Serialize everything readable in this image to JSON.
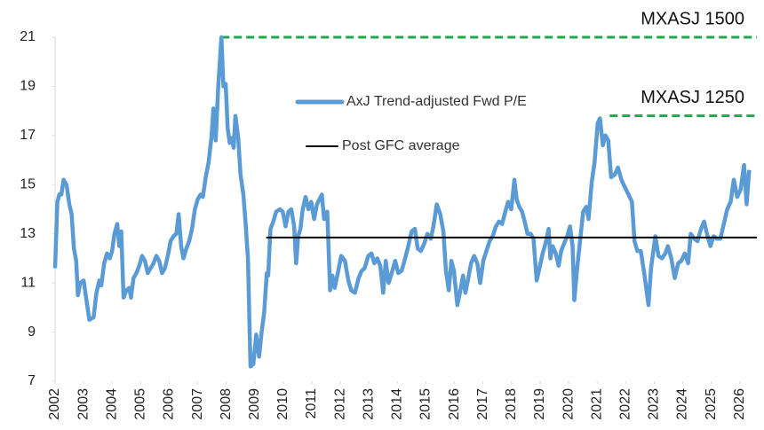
{
  "chart_data": {
    "type": "line",
    "xlim": [
      2002,
      2026.6
    ],
    "ylim": [
      7,
      21
    ],
    "yticks": [
      7,
      9,
      11,
      13,
      15,
      17,
      19,
      21
    ],
    "xticks": [
      2002,
      2003,
      2004,
      2005,
      2006,
      2007,
      2008,
      2009,
      2010,
      2011,
      2012,
      2013,
      2014,
      2015,
      2016,
      2017,
      2018,
      2019,
      2020,
      2021,
      2022,
      2023,
      2024,
      2025,
      2026
    ],
    "grid": false,
    "series": [
      {
        "name": "AxJ Trend-adjusted Fwd P/E",
        "color": "#5b9bd5",
        "x": [
          2002.0,
          2002.08,
          2002.15,
          2002.22,
          2002.3,
          2002.4,
          2002.5,
          2002.58,
          2002.66,
          2002.74,
          2002.8,
          2002.88,
          2003.0,
          2003.1,
          2003.2,
          2003.35,
          2003.45,
          2003.55,
          2003.62,
          2003.72,
          2003.82,
          2003.92,
          2004.0,
          2004.08,
          2004.18,
          2004.25,
          2004.32,
          2004.4,
          2004.5,
          2004.6,
          2004.66,
          2004.75,
          2004.85,
          2004.95,
          2005.05,
          2005.15,
          2005.25,
          2005.35,
          2005.45,
          2005.55,
          2005.65,
          2005.75,
          2005.85,
          2005.95,
          2006.05,
          2006.15,
          2006.25,
          2006.33,
          2006.42,
          2006.5,
          2006.6,
          2006.7,
          2006.8,
          2006.9,
          2007.0,
          2007.1,
          2007.18,
          2007.28,
          2007.38,
          2007.48,
          2007.55,
          2007.63,
          2007.72,
          2007.83,
          2007.9,
          2007.98,
          2008.05,
          2008.12,
          2008.2,
          2008.26,
          2008.32,
          2008.42,
          2008.5,
          2008.6,
          2008.68,
          2008.76,
          2008.85,
          2008.95,
          2009.05,
          2009.15,
          2009.25,
          2009.33,
          2009.42,
          2009.47,
          2009.55,
          2009.65,
          2009.75,
          2009.88,
          2009.98,
          2010.08,
          2010.18,
          2010.28,
          2010.38,
          2010.45,
          2010.52,
          2010.6,
          2010.68,
          2010.78,
          2010.88,
          2010.98,
          2011.08,
          2011.18,
          2011.35,
          2011.43,
          2011.54,
          2011.64,
          2011.72,
          2011.8,
          2011.91,
          2012.03,
          2012.16,
          2012.28,
          2012.38,
          2012.51,
          2012.64,
          2012.75,
          2012.85,
          2012.98,
          2013.09,
          2013.19,
          2013.29,
          2013.4,
          2013.5,
          2013.59,
          2013.69,
          2013.8,
          2013.92,
          2014.03,
          2014.15,
          2014.27,
          2014.38,
          2014.5,
          2014.61,
          2014.71,
          2014.82,
          2014.94,
          2015.05,
          2015.17,
          2015.26,
          2015.38,
          2015.5,
          2015.61,
          2015.7,
          2015.8,
          2015.89,
          2015.98,
          2016.1,
          2016.19,
          2016.3,
          2016.38,
          2016.47,
          2016.58,
          2016.69,
          2016.8,
          2016.9,
          2017.01,
          2017.12,
          2017.23,
          2017.34,
          2017.45,
          2017.56,
          2017.67,
          2017.78,
          2017.88,
          2017.99,
          2018.1,
          2018.18,
          2018.27,
          2018.37,
          2018.46,
          2018.56,
          2018.67,
          2018.77,
          2018.88,
          2018.98,
          2019.09,
          2019.19,
          2019.3,
          2019.36,
          2019.44,
          2019.55,
          2019.65,
          2019.74,
          2019.84,
          2019.95,
          2020.05,
          2020.14,
          2020.2,
          2020.3,
          2020.41,
          2020.51,
          2020.62,
          2020.7,
          2020.81,
          2020.91,
          2021.02,
          2021.1,
          2021.2,
          2021.29,
          2021.39,
          2021.49,
          2021.61,
          2021.73,
          2021.85,
          2021.97,
          2022.1,
          2022.22,
          2022.31,
          2022.41,
          2022.53,
          2022.65,
          2022.8,
          2022.89,
          2023.04,
          2023.15,
          2023.27,
          2023.39,
          2023.48,
          2023.6,
          2023.72,
          2023.84,
          2023.95,
          2024.07,
          2024.19,
          2024.28,
          2024.4,
          2024.52,
          2024.64,
          2024.75,
          2024.85,
          2024.97,
          2025.08,
          2025.2,
          2025.32,
          2025.44,
          2025.56,
          2025.68,
          2025.79,
          2025.91,
          2026.03,
          2026.15,
          2026.24,
          2026.33
        ],
        "values": [
          11.6,
          14.3,
          14.6,
          14.6,
          15.2,
          15.0,
          14.2,
          13.8,
          12.4,
          11.9,
          10.5,
          11.0,
          11.1,
          10.3,
          9.5,
          9.6,
          10.6,
          11.1,
          10.9,
          11.8,
          12.2,
          12.0,
          12.3,
          13.0,
          13.4,
          12.5,
          13.1,
          10.4,
          10.7,
          10.8,
          10.4,
          11.2,
          11.4,
          11.7,
          12.1,
          11.9,
          11.4,
          11.6,
          11.8,
          12.1,
          11.9,
          11.4,
          11.6,
          12.1,
          12.7,
          12.9,
          13.0,
          13.8,
          12.5,
          12.0,
          12.4,
          12.7,
          13.2,
          14.0,
          14.4,
          14.6,
          14.5,
          15.3,
          15.9,
          16.9,
          18.1,
          16.8,
          19.0,
          21.0,
          19.0,
          19.1,
          17.3,
          16.7,
          16.9,
          16.5,
          17.8,
          16.9,
          15.4,
          14.6,
          13.4,
          12.0,
          7.6,
          7.7,
          8.9,
          8.0,
          9.1,
          9.8,
          11.4,
          11.3,
          13.2,
          13.5,
          13.9,
          14.0,
          13.9,
          13.3,
          13.9,
          14.0,
          13.3,
          11.8,
          12.9,
          13.2,
          14.0,
          14.5,
          14.0,
          14.3,
          13.6,
          14.2,
          14.6,
          13.6,
          13.9,
          10.7,
          11.3,
          10.8,
          11.4,
          12.1,
          11.9,
          11.1,
          10.7,
          10.6,
          11.2,
          11.5,
          11.6,
          12.1,
          12.2,
          11.8,
          12.0,
          11.7,
          10.6,
          11.9,
          11.0,
          11.4,
          11.9,
          11.4,
          11.5,
          12.0,
          12.5,
          13.1,
          13.2,
          12.4,
          12.3,
          12.6,
          13.0,
          12.8,
          13.3,
          14.2,
          13.8,
          13.1,
          11.5,
          10.7,
          11.9,
          11.5,
          10.1,
          10.6,
          11.3,
          10.6,
          11.1,
          11.8,
          12.1,
          11.8,
          11.0,
          11.9,
          12.3,
          12.7,
          12.9,
          13.3,
          13.5,
          13.4,
          13.9,
          14.3,
          14.0,
          15.2,
          14.4,
          14.1,
          13.9,
          13.5,
          13.0,
          13.0,
          12.8,
          11.1,
          11.6,
          12.2,
          12.6,
          13.2,
          12.0,
          12.5,
          12.2,
          11.7,
          12.3,
          12.6,
          12.9,
          13.3,
          12.5,
          10.3,
          11.6,
          12.8,
          13.9,
          14.1,
          13.6,
          15.1,
          15.9,
          17.5,
          17.7,
          16.6,
          17.0,
          16.8,
          15.3,
          15.4,
          15.7,
          15.2,
          14.9,
          14.6,
          14.3,
          12.7,
          12.3,
          12.3,
          11.4,
          10.1,
          11.6,
          12.9,
          12.1,
          12.0,
          12.2,
          12.5,
          12.0,
          11.2,
          11.8,
          11.9,
          12.2,
          11.8,
          13.0,
          12.8,
          12.7,
          13.2,
          13.5,
          13.0,
          12.5,
          12.9,
          12.8,
          12.8,
          13.4,
          14.0,
          14.3,
          15.2,
          14.5,
          14.8,
          15.8,
          14.2,
          15.6
        ]
      },
      {
        "name": "Post GFC average",
        "color": "#000000",
        "x": [
          2009.4,
          2026.6
        ],
        "values": [
          12.85,
          12.85
        ]
      }
    ],
    "reference_lines": [
      {
        "label": "MXASJ 1500",
        "value": 21,
        "x": [
          2007.83,
          2026.6
        ],
        "color": "#1fa84a"
      },
      {
        "label": "MXASJ 1250",
        "value": 17.8,
        "x": [
          2021.44,
          2026.6
        ],
        "color": "#1fa84a"
      }
    ]
  }
}
